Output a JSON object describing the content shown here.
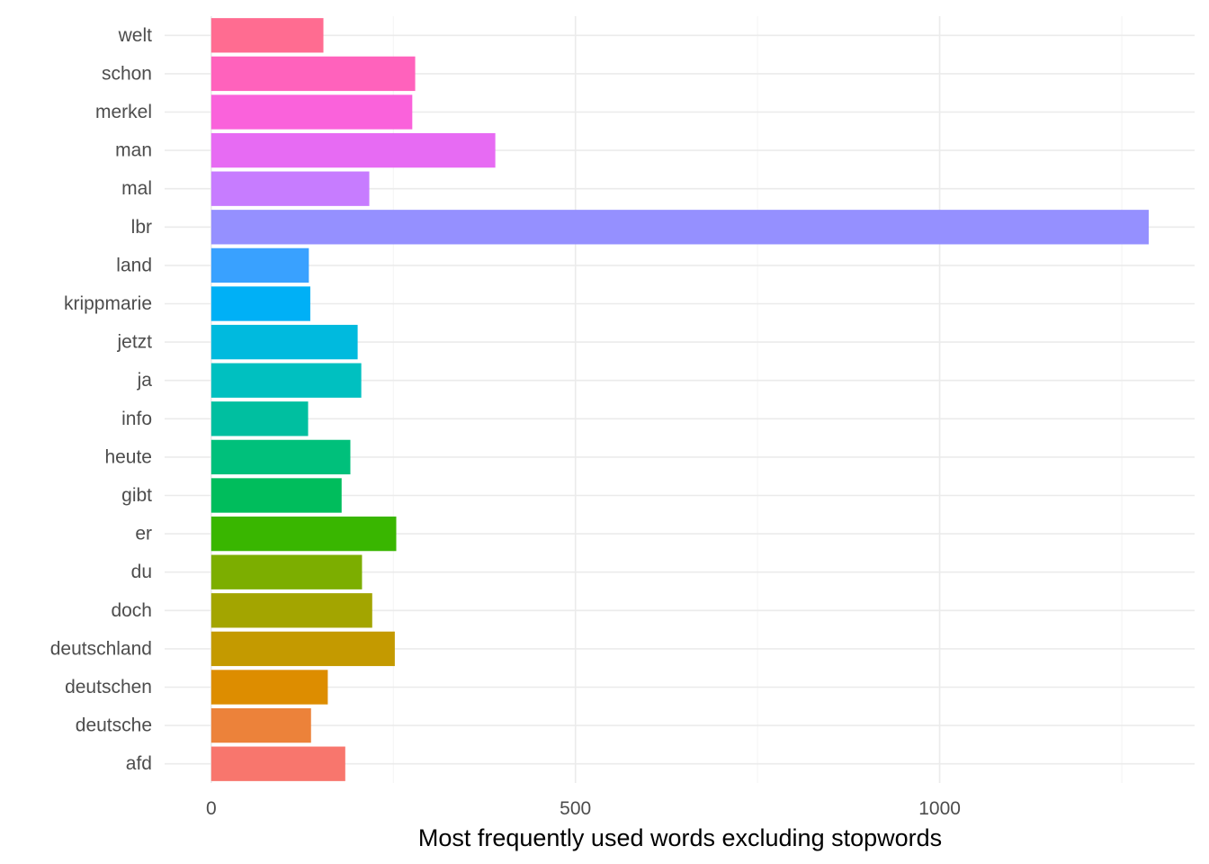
{
  "chart_data": {
    "type": "bar",
    "orientation": "horizontal",
    "categories": [
      "welt",
      "schon",
      "merkel",
      "man",
      "mal",
      "lbr",
      "land",
      "krippmarie",
      "jetzt",
      "ja",
      "info",
      "heute",
      "gibt",
      "er",
      "du",
      "doch",
      "deutschland",
      "deutschen",
      "deutsche",
      "afd"
    ],
    "values": [
      154,
      280,
      276,
      390,
      217,
      1287,
      134,
      136,
      201,
      206,
      133,
      191,
      179,
      254,
      207,
      221,
      252,
      160,
      137,
      184
    ],
    "colors": [
      "#FF6C91",
      "#FF62BC",
      "#FA62DB",
      "#E76BF3",
      "#C77CFF",
      "#9590FF",
      "#39A1FF",
      "#00B0F6",
      "#00BADE",
      "#00C0C0",
      "#00BFA0",
      "#00C07B",
      "#00BD5C",
      "#39B600",
      "#7CAE00",
      "#A3A500",
      "#C49A00",
      "#DD8D00",
      "#EC823A",
      "#F8766D"
    ],
    "x_ticks": [
      0,
      500,
      1000
    ],
    "x_tick_labels": [
      "0",
      "500",
      "1000"
    ],
    "xlim": [
      -64,
      1350
    ],
    "xlabel": "Most frequently used words excluding stopwords",
    "ylabel": "",
    "grid": true,
    "legend": "none"
  }
}
